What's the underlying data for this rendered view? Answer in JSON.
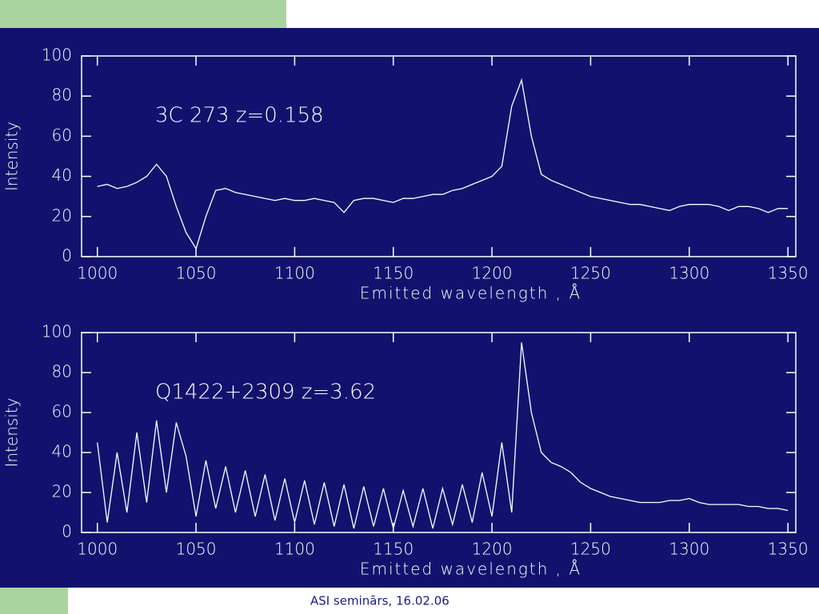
{
  "chart_data": [
    {
      "type": "line",
      "annotation": "3C 273  z=0.158",
      "xlabel": "Emitted wavelength , Å",
      "ylabel": "Intensity",
      "color": "#ffffff",
      "xlim": [
        992,
        1354
      ],
      "ylim": [
        0,
        100
      ],
      "xticks": [
        1000,
        1050,
        1100,
        1150,
        1200,
        1250,
        1300,
        1350
      ],
      "yticks": [
        0,
        20,
        40,
        60,
        80,
        100
      ],
      "x": [
        1000,
        1005,
        1010,
        1015,
        1020,
        1025,
        1030,
        1035,
        1040,
        1045,
        1050,
        1055,
        1060,
        1065,
        1070,
        1075,
        1080,
        1085,
        1090,
        1095,
        1100,
        1105,
        1110,
        1115,
        1120,
        1125,
        1130,
        1135,
        1140,
        1145,
        1150,
        1155,
        1160,
        1165,
        1170,
        1175,
        1180,
        1185,
        1190,
        1195,
        1200,
        1205,
        1210,
        1215,
        1220,
        1225,
        1230,
        1235,
        1240,
        1245,
        1250,
        1255,
        1260,
        1265,
        1270,
        1275,
        1280,
        1285,
        1290,
        1295,
        1300,
        1305,
        1310,
        1315,
        1320,
        1325,
        1330,
        1335,
        1340,
        1345,
        1350
      ],
      "values": [
        35,
        36,
        34,
        35,
        37,
        40,
        46,
        40,
        25,
        12,
        4,
        20,
        33,
        34,
        32,
        31,
        30,
        29,
        28,
        29,
        28,
        28,
        29,
        28,
        27,
        22,
        28,
        29,
        29,
        28,
        27,
        29,
        29,
        30,
        31,
        31,
        33,
        34,
        36,
        38,
        40,
        45,
        75,
        88,
        60,
        41,
        38,
        36,
        34,
        32,
        30,
        29,
        28,
        27,
        26,
        26,
        25,
        24,
        23,
        25,
        26,
        26,
        26,
        25,
        23,
        25,
        25,
        24,
        22,
        24,
        24
      ]
    },
    {
      "type": "line",
      "annotation": "Q1422+2309  z=3.62",
      "xlabel": "Emitted wavelength , Å",
      "ylabel": "Intensity",
      "color": "#ffffff",
      "xlim": [
        992,
        1354
      ],
      "ylim": [
        0,
        100
      ],
      "xticks": [
        1000,
        1050,
        1100,
        1150,
        1200,
        1250,
        1300,
        1350
      ],
      "yticks": [
        0,
        20,
        40,
        60,
        80,
        100
      ],
      "x": [
        1000,
        1005,
        1010,
        1015,
        1020,
        1025,
        1030,
        1035,
        1040,
        1045,
        1050,
        1055,
        1060,
        1065,
        1070,
        1075,
        1080,
        1085,
        1090,
        1095,
        1100,
        1105,
        1110,
        1115,
        1120,
        1125,
        1130,
        1135,
        1140,
        1145,
        1150,
        1155,
        1160,
        1165,
        1170,
        1175,
        1180,
        1185,
        1190,
        1195,
        1200,
        1205,
        1210,
        1215,
        1220,
        1225,
        1230,
        1235,
        1240,
        1245,
        1250,
        1255,
        1260,
        1265,
        1270,
        1275,
        1280,
        1285,
        1290,
        1295,
        1300,
        1305,
        1310,
        1315,
        1320,
        1325,
        1330,
        1335,
        1340,
        1345,
        1350
      ],
      "values": [
        45,
        5,
        40,
        10,
        50,
        15,
        56,
        20,
        55,
        38,
        8,
        36,
        12,
        33,
        10,
        31,
        8,
        29,
        6,
        27,
        5,
        26,
        4,
        25,
        3,
        24,
        2,
        23,
        3,
        22,
        2,
        21,
        3,
        22,
        2,
        22,
        4,
        24,
        5,
        30,
        8,
        45,
        10,
        95,
        60,
        40,
        35,
        33,
        30,
        25,
        22,
        20,
        18,
        17,
        16,
        15,
        15,
        15,
        16,
        16,
        17,
        15,
        14,
        14,
        14,
        14,
        13,
        13,
        12,
        12,
        11
      ]
    }
  ],
  "footer": "ASI seminārs, 16.02.06"
}
